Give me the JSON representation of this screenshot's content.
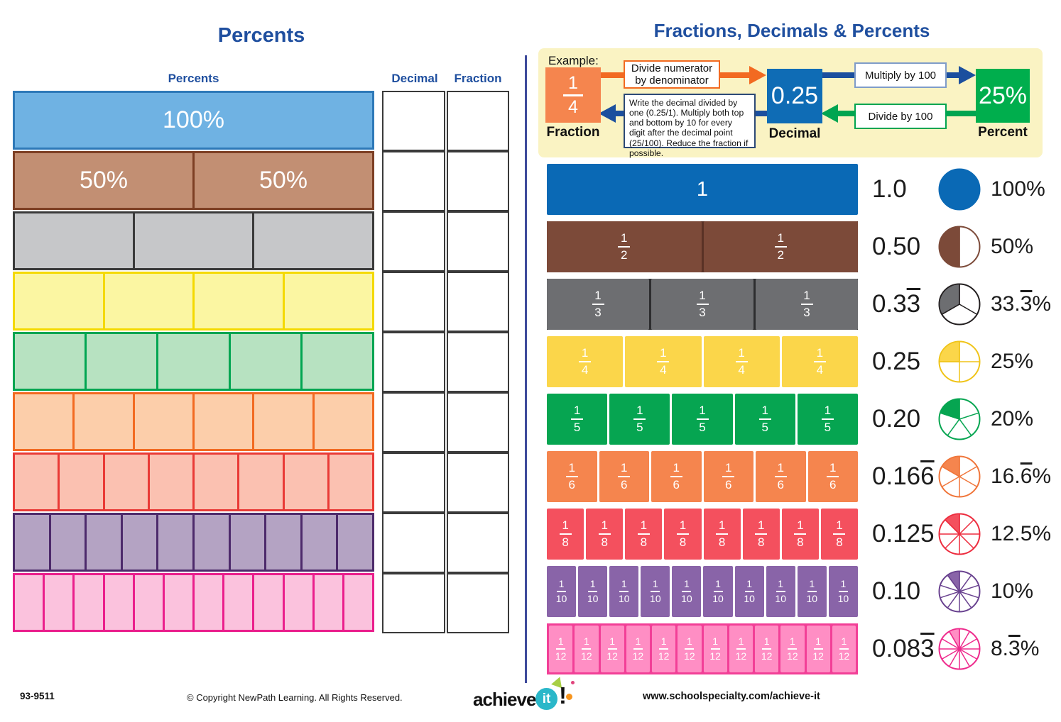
{
  "left": {
    "title": "Percents",
    "bar_column_header": "Percents",
    "decimal_column_header": "Decimal",
    "fraction_column_header": "Fraction",
    "rows": [
      {
        "segments": 1,
        "labels": [
          "100%"
        ],
        "fill": "#6fb2e3",
        "border": "#2e79b8"
      },
      {
        "segments": 2,
        "labels": [
          "50%",
          "50%"
        ],
        "fill": "#c28f73",
        "border": "#7d3f24"
      },
      {
        "segments": 3,
        "labels": [],
        "fill": "#c6c7c9",
        "border": "#3a3a3a"
      },
      {
        "segments": 4,
        "labels": [],
        "fill": "#fbf6a2",
        "border": "#f4d900"
      },
      {
        "segments": 5,
        "labels": [],
        "fill": "#b7e2c1",
        "border": "#00a551"
      },
      {
        "segments": 6,
        "labels": [],
        "fill": "#fcceaa",
        "border": "#f26a21"
      },
      {
        "segments": 8,
        "labels": [],
        "fill": "#fbc1b1",
        "border": "#e93a36"
      },
      {
        "segments": 10,
        "labels": [],
        "fill": "#b4a3c3",
        "border": "#4d2a6b"
      },
      {
        "segments": 12,
        "labels": [],
        "fill": "#fbc2dd",
        "border": "#ea1e8c"
      }
    ]
  },
  "right": {
    "title": "Fractions, Decimals & Percents",
    "example": {
      "label": "Example:",
      "fraction_numerator": "1",
      "fraction_denominator": "4",
      "fraction_caption": "Fraction",
      "to_decimal_rule": "Divide numerator by denominator",
      "decimal_value": "0.25",
      "decimal_caption": "Decimal",
      "to_percent_rule": "Multiply by 100",
      "percent_value": "25%",
      "percent_caption": "Percent",
      "percent_to_decimal_rule": "Divide by 100",
      "decimal_to_fraction_rule": "Write the decimal divided by one (0.25/1). Multiply both top and bottom by 10 for every digit after the decimal point (25/100). Reduce the fraction if possible.",
      "colors": {
        "box_bg": "#faf3c3",
        "fraction_square": "#f5854e",
        "decimal_square": "#0f6cb5",
        "percent_square": "#00ae4d",
        "arrow_orange": "#f26a21",
        "arrow_navy": "#1b4f9e",
        "arrow_green": "#00a551",
        "rule1_border": "#f26a21",
        "rule2_border": "#7f9cc9",
        "rule3_border": "#00a551",
        "rule4_border": "#2c4977"
      }
    },
    "rows": [
      {
        "n": 1,
        "whole_label": "1",
        "numerator": "",
        "denominator": "",
        "color": "#0a69b5",
        "divider": "transparent",
        "outline": "",
        "pie_stroke": "#0a69b5",
        "decimal_pre": "1.0",
        "decimal_over": "",
        "percent_pre": "100",
        "percent_over": "",
        "percent_post": "%"
      },
      {
        "n": 2,
        "whole_label": "",
        "numerator": "1",
        "denominator": "2",
        "color": "#7c4a39",
        "divider": "#5a3226",
        "outline": "",
        "pie_stroke": "#7c4a39",
        "decimal_pre": "0.50",
        "decimal_over": "",
        "percent_pre": "50",
        "percent_over": "",
        "percent_post": "%"
      },
      {
        "n": 3,
        "whole_label": "",
        "numerator": "1",
        "denominator": "3",
        "color": "#6d6e71",
        "divider": "#2d2d2f",
        "outline": "",
        "pie_stroke": "#231f20",
        "decimal_pre": "0.3",
        "decimal_over": "3",
        "percent_pre": "33.",
        "percent_over": "3",
        "percent_post": "%"
      },
      {
        "n": 4,
        "whole_label": "",
        "numerator": "1",
        "denominator": "4",
        "color": "#fbd64a",
        "divider": "#ffffff",
        "outline": "",
        "pie_stroke": "#f0c419",
        "decimal_pre": "0.25",
        "decimal_over": "",
        "percent_pre": "25",
        "percent_over": "",
        "percent_post": "%"
      },
      {
        "n": 5,
        "whole_label": "",
        "numerator": "1",
        "denominator": "5",
        "color": "#06a551",
        "divider": "#ffffff",
        "outline": "",
        "pie_stroke": "#06a551",
        "decimal_pre": "0.20",
        "decimal_over": "",
        "percent_pre": "20",
        "percent_over": "",
        "percent_post": "%"
      },
      {
        "n": 6,
        "whole_label": "",
        "numerator": "1",
        "denominator": "6",
        "color": "#f5854e",
        "divider": "#ffffff",
        "outline": "",
        "pie_stroke": "#f0763b",
        "decimal_pre": "0.16",
        "decimal_over": "6",
        "percent_pre": "16.",
        "percent_over": "6",
        "percent_post": "%"
      },
      {
        "n": 8,
        "whole_label": "",
        "numerator": "1",
        "denominator": "8",
        "color": "#f4505e",
        "divider": "#ffffff",
        "outline": "",
        "pie_stroke": "#ed2c3e",
        "decimal_pre": "0.125",
        "decimal_over": "",
        "percent_pre": "12.5",
        "percent_over": "",
        "percent_post": "%"
      },
      {
        "n": 10,
        "whole_label": "",
        "numerator": "1",
        "denominator": "10",
        "color": "#8964a8",
        "divider": "#ffffff",
        "outline": "",
        "pie_stroke": "#6a4390",
        "decimal_pre": "0.10",
        "decimal_over": "",
        "percent_pre": "10",
        "percent_over": "",
        "percent_post": "%"
      },
      {
        "n": 12,
        "whole_label": "",
        "numerator": "1",
        "denominator": "12",
        "color": "#ff8ec4",
        "divider": "#f23f97",
        "outline": "#f23f97",
        "pie_stroke": "#ee2a8c",
        "decimal_pre": "0.08",
        "decimal_over": "3",
        "percent_pre": "8.",
        "percent_over": "3",
        "percent_post": "%"
      }
    ]
  },
  "footer": {
    "item_number": "93-9511",
    "copyright": "© Copyright NewPath Learning. All Rights Reserved.",
    "logo_achieve": "achieve",
    "logo_it": "it",
    "logo_bang": "!",
    "website": "www.schoolspecialty.com/achieve-it"
  }
}
